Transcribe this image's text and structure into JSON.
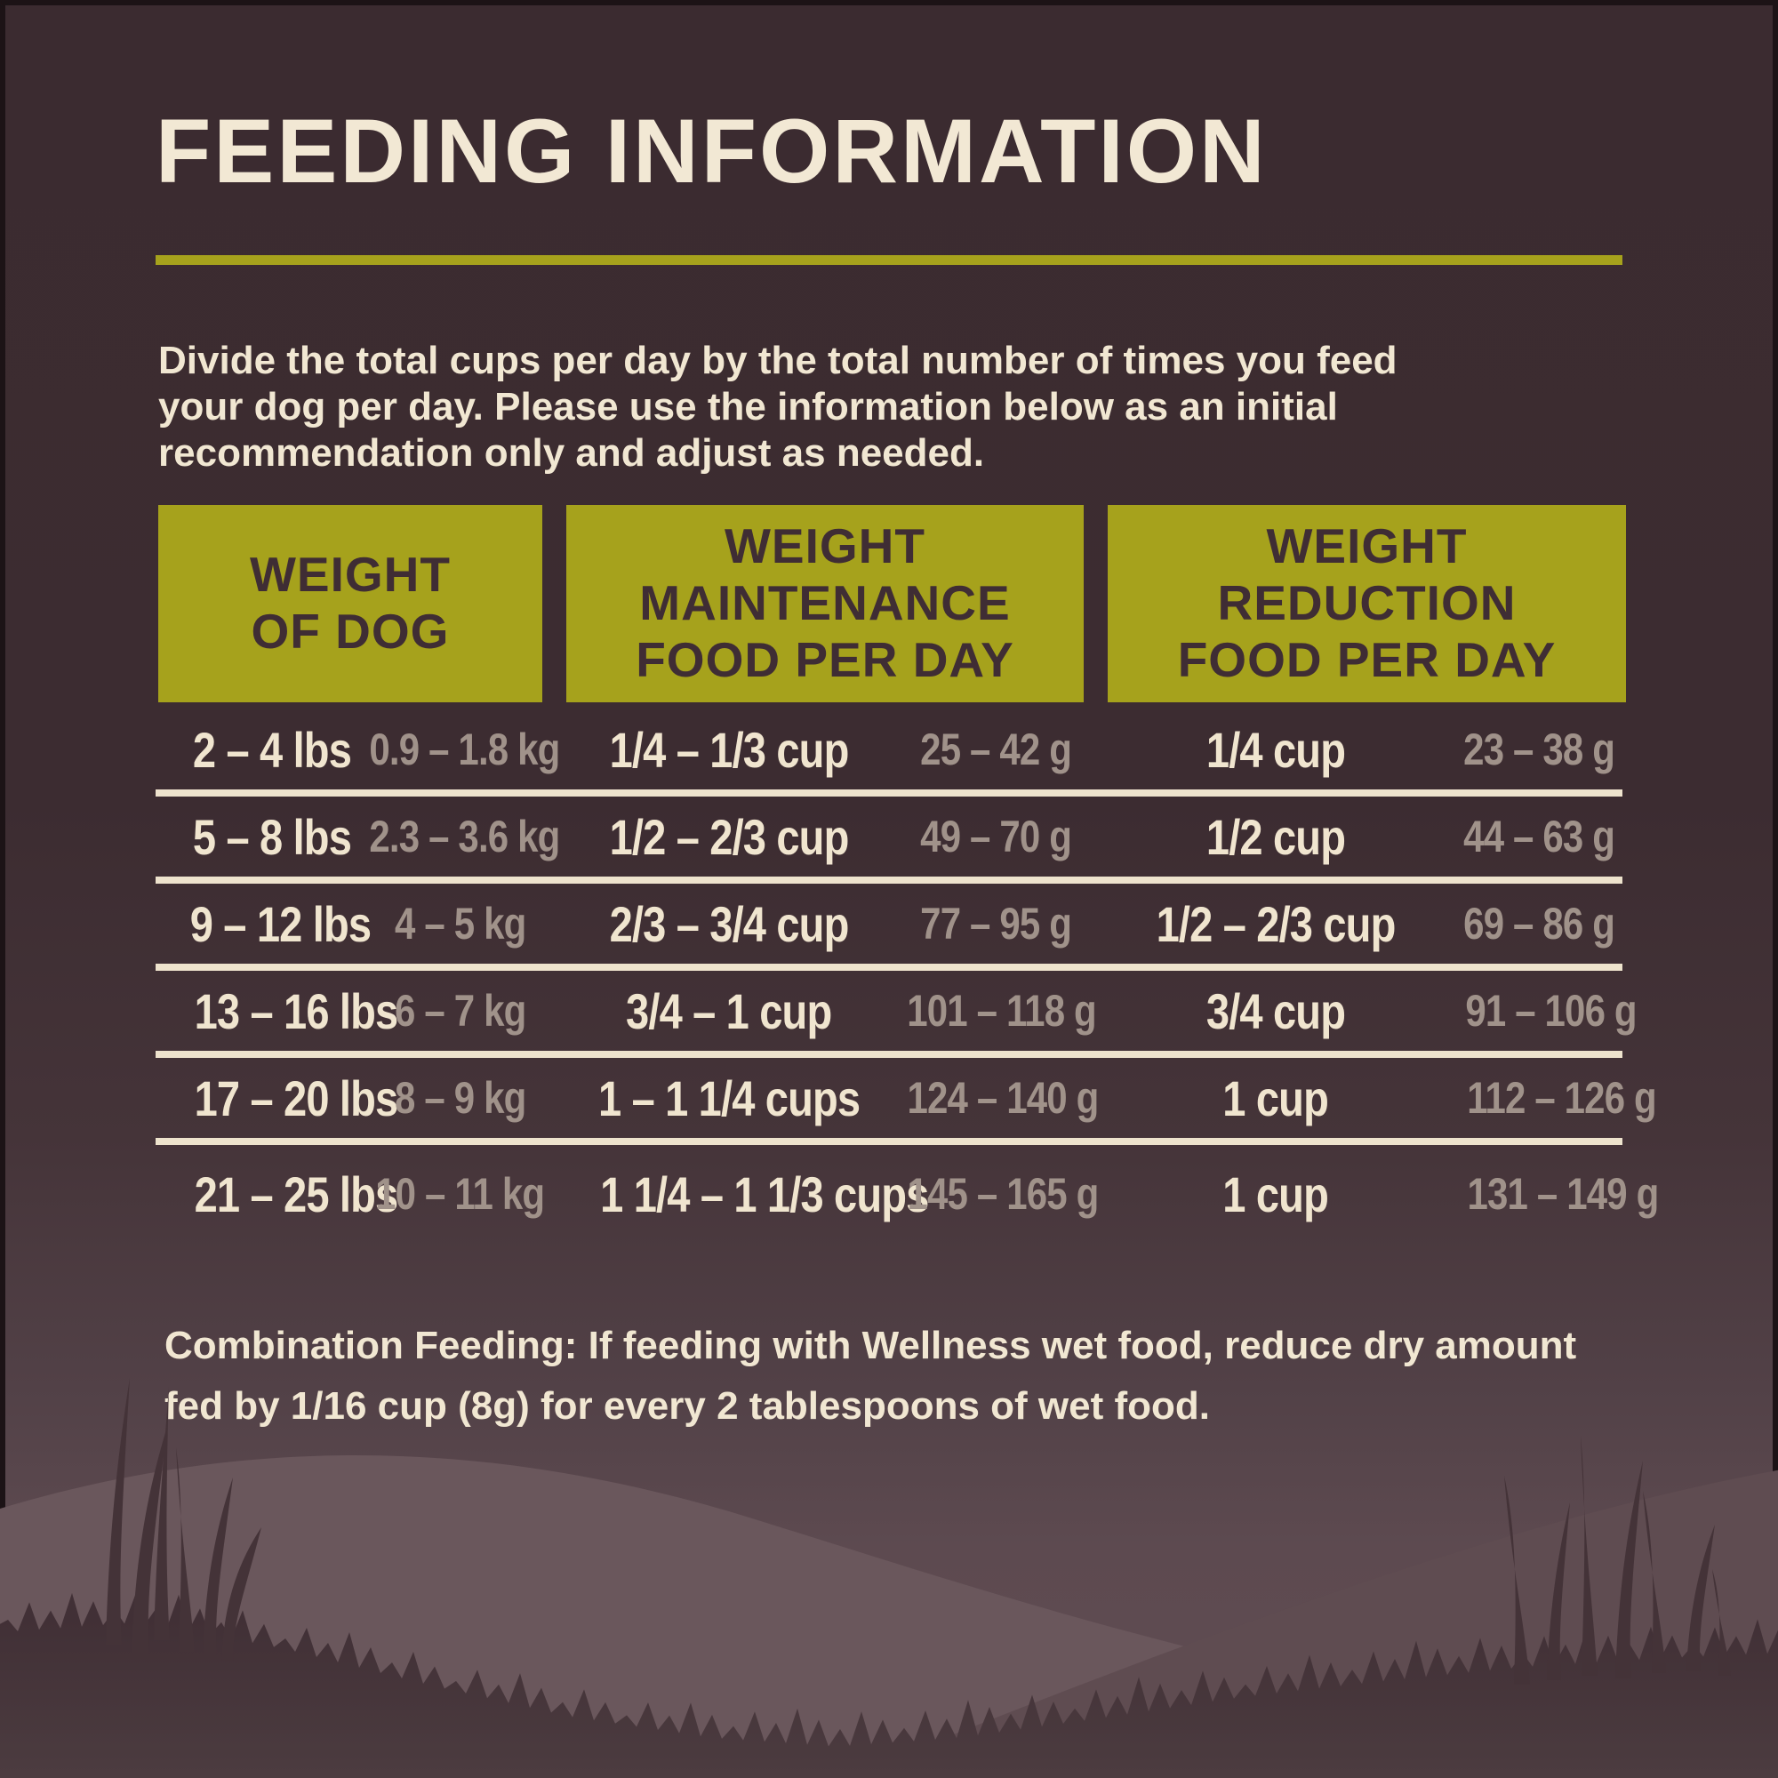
{
  "page": {
    "title": "FEEDING INFORMATION",
    "intro": "Divide the total cups per day by the total number of times you feed your dog per day. Please use the information below as an initial recommendation only and adjust as needed.",
    "note_label": "Combination Feeding:",
    "note_text": " If feeding with Wellness wet food, reduce dry amount fed by 1/16 cup (8g) for every 2 tablespoons of wet food."
  },
  "colors": {
    "background": "#3c2c31",
    "cream_text": "#f0e5cf",
    "muted_text": "#a0928a",
    "accent_green": "#a6a21c",
    "header_text": "#3f2d34",
    "divider": "#eee3cd"
  },
  "table": {
    "headers": [
      "WEIGHT\nOF DOG",
      "WEIGHT\nMAINTENANCE\nFOOD PER DAY",
      "WEIGHT\nREDUCTION\nFOOD PER DAY"
    ],
    "rows": [
      {
        "lbs": "2 – 4 lbs",
        "kg": "0.9 – 1.8 kg",
        "maint_cups": "1/4 – 1/3 cup",
        "maint_g": "25 – 42 g",
        "red_cups": "1/4 cup",
        "red_g": "23 – 38 g"
      },
      {
        "lbs": "5 – 8 lbs",
        "kg": "2.3 – 3.6 kg",
        "maint_cups": "1/2 – 2/3 cup",
        "maint_g": "49 – 70 g",
        "red_cups": "1/2 cup",
        "red_g": "44 – 63 g"
      },
      {
        "lbs": "9 – 12 lbs",
        "kg": "4 – 5 kg",
        "maint_cups": "2/3 – 3/4 cup",
        "maint_g": "77 – 95 g",
        "red_cups": "1/2 – 2/3 cup",
        "red_g": "69 – 86 g"
      },
      {
        "lbs": "13 – 16 lbs",
        "kg": "6 – 7 kg",
        "maint_cups": "3/4 – 1 cup",
        "maint_g": "101 – 118 g",
        "red_cups": "3/4 cup",
        "red_g": "91 – 106 g"
      },
      {
        "lbs": "17 – 20 lbs",
        "kg": "8 – 9 kg",
        "maint_cups": "1 – 1 1/4 cups",
        "maint_g": "124 – 140 g",
        "red_cups": "1 cup",
        "red_g": "112 – 126 g"
      },
      {
        "lbs": "21 – 25 lbs",
        "kg": "10 – 11 kg",
        "maint_cups": "1 1/4 – 1 1/3 cups",
        "maint_g": "145 – 165 g",
        "red_cups": "1 cup",
        "red_g": "131 – 149 g"
      }
    ]
  }
}
